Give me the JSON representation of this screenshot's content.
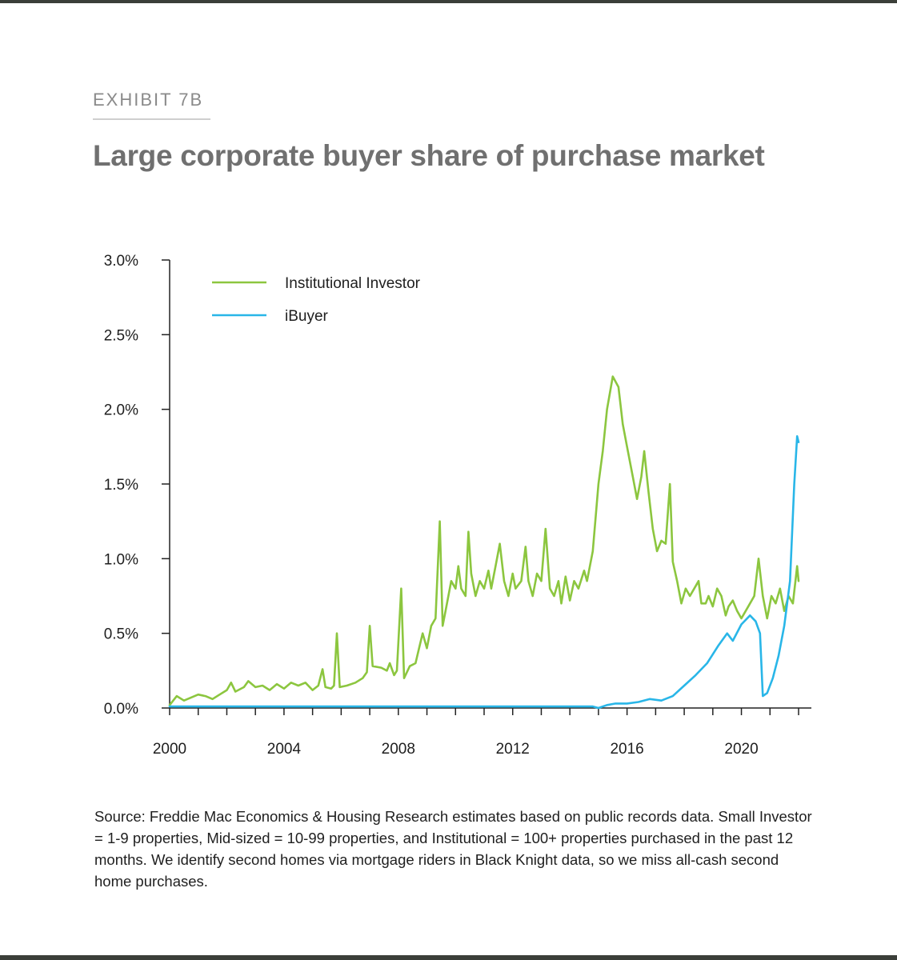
{
  "header": {
    "exhibit": "EXHIBIT 7B",
    "title": "Large corporate buyer share of purchase market"
  },
  "source_note": "Source: Freddie Mac Economics & Housing Research estimates based on public records data. Small Investor = 1-9 properties, Mid-sized = 10-99 properties, and Institutional = 100+ properties purchased in the past 12 months. We identify second homes via mortgage riders in Black Knight data, so we miss all-cash second home purchases.",
  "chart_data": {
    "type": "line",
    "title": "Large corporate buyer share of purchase market",
    "xlabel": "",
    "ylabel": "",
    "xlim": [
      2000,
      2022
    ],
    "ylim": [
      0,
      3.0
    ],
    "x_ticks": [
      2000,
      2004,
      2008,
      2012,
      2016,
      2020
    ],
    "x_tick_labels": [
      "2000",
      "2004",
      "2008",
      "2012",
      "2016",
      "2020"
    ],
    "y_ticks": [
      0,
      0.5,
      1.0,
      1.5,
      2.0,
      2.5,
      3.0
    ],
    "y_tick_labels": [
      "0.0%",
      "0.5%",
      "1.0%",
      "1.5%",
      "2.0%",
      "2.5%",
      "3.0%"
    ],
    "grid": false,
    "legend_position": "top-left",
    "series": [
      {
        "name": "Institutional Investor",
        "color": "#8cc63f",
        "points": [
          [
            2000.0,
            0.02
          ],
          [
            2000.25,
            0.08
          ],
          [
            2000.5,
            0.05
          ],
          [
            2000.75,
            0.07
          ],
          [
            2001.0,
            0.09
          ],
          [
            2001.25,
            0.08
          ],
          [
            2001.5,
            0.06
          ],
          [
            2001.75,
            0.09
          ],
          [
            2002.0,
            0.12
          ],
          [
            2002.15,
            0.17
          ],
          [
            2002.3,
            0.11
          ],
          [
            2002.6,
            0.14
          ],
          [
            2002.75,
            0.18
          ],
          [
            2003.0,
            0.14
          ],
          [
            2003.25,
            0.15
          ],
          [
            2003.5,
            0.12
          ],
          [
            2003.75,
            0.16
          ],
          [
            2004.0,
            0.13
          ],
          [
            2004.25,
            0.17
          ],
          [
            2004.5,
            0.15
          ],
          [
            2004.75,
            0.17
          ],
          [
            2005.0,
            0.12
          ],
          [
            2005.2,
            0.15
          ],
          [
            2005.35,
            0.26
          ],
          [
            2005.45,
            0.14
          ],
          [
            2005.65,
            0.13
          ],
          [
            2005.75,
            0.15
          ],
          [
            2005.85,
            0.5
          ],
          [
            2005.95,
            0.14
          ],
          [
            2006.2,
            0.15
          ],
          [
            2006.5,
            0.17
          ],
          [
            2006.75,
            0.2
          ],
          [
            2006.9,
            0.24
          ],
          [
            2007.0,
            0.55
          ],
          [
            2007.1,
            0.28
          ],
          [
            2007.4,
            0.27
          ],
          [
            2007.6,
            0.25
          ],
          [
            2007.7,
            0.3
          ],
          [
            2007.85,
            0.22
          ],
          [
            2007.95,
            0.25
          ],
          [
            2008.1,
            0.8
          ],
          [
            2008.2,
            0.2
          ],
          [
            2008.4,
            0.28
          ],
          [
            2008.6,
            0.3
          ],
          [
            2008.75,
            0.42
          ],
          [
            2008.85,
            0.5
          ],
          [
            2009.0,
            0.4
          ],
          [
            2009.15,
            0.55
          ],
          [
            2009.3,
            0.6
          ],
          [
            2009.45,
            1.25
          ],
          [
            2009.55,
            0.55
          ],
          [
            2009.7,
            0.7
          ],
          [
            2009.85,
            0.85
          ],
          [
            2010.0,
            0.8
          ],
          [
            2010.1,
            0.95
          ],
          [
            2010.2,
            0.8
          ],
          [
            2010.35,
            0.75
          ],
          [
            2010.45,
            1.18
          ],
          [
            2010.55,
            0.9
          ],
          [
            2010.7,
            0.75
          ],
          [
            2010.85,
            0.85
          ],
          [
            2011.0,
            0.8
          ],
          [
            2011.15,
            0.92
          ],
          [
            2011.25,
            0.8
          ],
          [
            2011.4,
            0.95
          ],
          [
            2011.55,
            1.1
          ],
          [
            2011.7,
            0.85
          ],
          [
            2011.85,
            0.75
          ],
          [
            2012.0,
            0.9
          ],
          [
            2012.1,
            0.8
          ],
          [
            2012.3,
            0.85
          ],
          [
            2012.45,
            1.08
          ],
          [
            2012.55,
            0.85
          ],
          [
            2012.7,
            0.75
          ],
          [
            2012.85,
            0.9
          ],
          [
            2013.0,
            0.85
          ],
          [
            2013.15,
            1.2
          ],
          [
            2013.3,
            0.8
          ],
          [
            2013.45,
            0.75
          ],
          [
            2013.6,
            0.85
          ],
          [
            2013.7,
            0.7
          ],
          [
            2013.85,
            0.88
          ],
          [
            2014.0,
            0.72
          ],
          [
            2014.15,
            0.85
          ],
          [
            2014.3,
            0.8
          ],
          [
            2014.5,
            0.92
          ],
          [
            2014.6,
            0.85
          ],
          [
            2014.8,
            1.05
          ],
          [
            2015.0,
            1.5
          ],
          [
            2015.15,
            1.72
          ],
          [
            2015.3,
            2.0
          ],
          [
            2015.5,
            2.22
          ],
          [
            2015.7,
            2.15
          ],
          [
            2015.85,
            1.9
          ],
          [
            2016.0,
            1.75
          ],
          [
            2016.2,
            1.55
          ],
          [
            2016.35,
            1.4
          ],
          [
            2016.5,
            1.55
          ],
          [
            2016.6,
            1.72
          ],
          [
            2016.75,
            1.45
          ],
          [
            2016.9,
            1.2
          ],
          [
            2017.05,
            1.05
          ],
          [
            2017.2,
            1.12
          ],
          [
            2017.35,
            1.1
          ],
          [
            2017.5,
            1.5
          ],
          [
            2017.6,
            0.98
          ],
          [
            2017.75,
            0.85
          ],
          [
            2017.9,
            0.7
          ],
          [
            2018.05,
            0.8
          ],
          [
            2018.2,
            0.75
          ],
          [
            2018.35,
            0.8
          ],
          [
            2018.5,
            0.85
          ],
          [
            2018.6,
            0.7
          ],
          [
            2018.75,
            0.7
          ],
          [
            2018.85,
            0.75
          ],
          [
            2019.0,
            0.68
          ],
          [
            2019.15,
            0.8
          ],
          [
            2019.3,
            0.75
          ],
          [
            2019.45,
            0.62
          ],
          [
            2019.55,
            0.68
          ],
          [
            2019.7,
            0.72
          ],
          [
            2019.85,
            0.65
          ],
          [
            2020.0,
            0.6
          ],
          [
            2020.15,
            0.65
          ],
          [
            2020.3,
            0.7
          ],
          [
            2020.45,
            0.75
          ],
          [
            2020.6,
            1.0
          ],
          [
            2020.75,
            0.75
          ],
          [
            2020.9,
            0.6
          ],
          [
            2021.05,
            0.75
          ],
          [
            2021.2,
            0.7
          ],
          [
            2021.35,
            0.8
          ],
          [
            2021.5,
            0.65
          ],
          [
            2021.65,
            0.75
          ],
          [
            2021.8,
            0.7
          ],
          [
            2021.95,
            0.95
          ],
          [
            2022.0,
            0.85
          ]
        ]
      },
      {
        "name": "iBuyer",
        "color": "#29b6e8",
        "points": [
          [
            2000.0,
            0.01
          ],
          [
            2014.8,
            0.01
          ],
          [
            2015.0,
            0.0
          ],
          [
            2015.3,
            0.02
          ],
          [
            2015.6,
            0.03
          ],
          [
            2016.0,
            0.03
          ],
          [
            2016.4,
            0.04
          ],
          [
            2016.8,
            0.06
          ],
          [
            2017.2,
            0.05
          ],
          [
            2017.6,
            0.08
          ],
          [
            2018.0,
            0.15
          ],
          [
            2018.4,
            0.22
          ],
          [
            2018.8,
            0.3
          ],
          [
            2019.2,
            0.42
          ],
          [
            2019.5,
            0.5
          ],
          [
            2019.7,
            0.45
          ],
          [
            2020.0,
            0.56
          ],
          [
            2020.3,
            0.62
          ],
          [
            2020.5,
            0.58
          ],
          [
            2020.65,
            0.5
          ],
          [
            2020.75,
            0.08
          ],
          [
            2020.9,
            0.1
          ],
          [
            2021.1,
            0.2
          ],
          [
            2021.3,
            0.35
          ],
          [
            2021.5,
            0.55
          ],
          [
            2021.7,
            0.85
          ],
          [
            2021.85,
            1.5
          ],
          [
            2021.95,
            1.82
          ],
          [
            2022.0,
            1.78
          ]
        ]
      }
    ]
  }
}
